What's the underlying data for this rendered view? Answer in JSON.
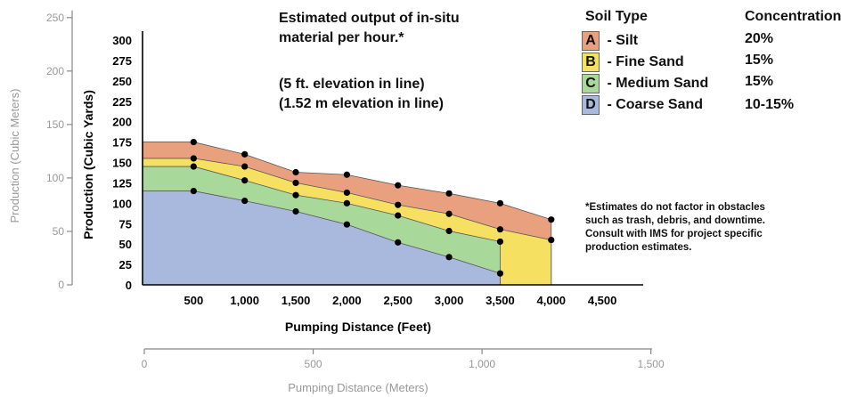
{
  "chart_data": {
    "type": "area",
    "x_ticks": [
      "500",
      "1,000",
      "1,500",
      "2,000",
      "2,500",
      "3,000",
      "3,500",
      "4,000",
      "4,500"
    ],
    "y_ticks": [
      "25",
      "50",
      "75",
      "100",
      "125",
      "150",
      "175",
      "200",
      "225",
      "250",
      "275",
      "300"
    ],
    "y2_ticks": [
      "0",
      "50",
      "100",
      "150",
      "200",
      "250"
    ],
    "x2_ticks": [
      "0",
      "500",
      "1,000",
      "1,500"
    ],
    "xlabel": "Pumping Distance (Feet)",
    "ylabel": "Production (Cubic Yards)",
    "x2label": "Pumping Distance (Meters)",
    "y2label": "Production (Cubic Meters)",
    "xlim": [
      0,
      4900
    ],
    "ylim": [
      0,
      300
    ],
    "x2lim": [
      0,
      1493
    ],
    "y2lim": [
      0,
      229
    ],
    "series": [
      {
        "name": "Silt",
        "letter": "A",
        "concentration": "20%",
        "color": "#e8a07e",
        "x": [
          0,
          500,
          1000,
          1500,
          2000,
          2500,
          3000,
          3500,
          4000
        ],
        "values": [
          175,
          175,
          160,
          138,
          135,
          122,
          112,
          100,
          80
        ]
      },
      {
        "name": "Fine Sand",
        "letter": "B",
        "concentration": "15%",
        "color": "#f6e062",
        "x": [
          0,
          500,
          1000,
          1500,
          2000,
          2500,
          3000,
          3500,
          4000
        ],
        "values": [
          155,
          155,
          145,
          125,
          113,
          98,
          87,
          68,
          55
        ]
      },
      {
        "name": "Medium Sand",
        "letter": "C",
        "concentration": "15%",
        "color": "#a8d99a",
        "x": [
          0,
          500,
          1000,
          1500,
          2000,
          2500,
          3000,
          3500
        ],
        "values": [
          145,
          145,
          128,
          110,
          100,
          85,
          66,
          53
        ]
      },
      {
        "name": "Coarse Sand",
        "letter": "D",
        "concentration": "10-15%",
        "color": "#a9b8dd",
        "x": [
          0,
          500,
          1000,
          1500,
          2000,
          2500,
          3000,
          3500
        ],
        "values": [
          115,
          115,
          103,
          90,
          74,
          52,
          34,
          14
        ]
      }
    ],
    "markers": [
      {
        "x": 500,
        "y": 175
      },
      {
        "x": 500,
        "y": 155
      },
      {
        "x": 500,
        "y": 145
      },
      {
        "x": 500,
        "y": 115
      },
      {
        "x": 1000,
        "y": 160
      },
      {
        "x": 1000,
        "y": 145
      },
      {
        "x": 1000,
        "y": 128
      },
      {
        "x": 1000,
        "y": 103
      },
      {
        "x": 1500,
        "y": 138
      },
      {
        "x": 1500,
        "y": 125
      },
      {
        "x": 1500,
        "y": 110
      },
      {
        "x": 1500,
        "y": 90
      },
      {
        "x": 2000,
        "y": 135
      },
      {
        "x": 2000,
        "y": 113
      },
      {
        "x": 2000,
        "y": 100
      },
      {
        "x": 2000,
        "y": 74
      },
      {
        "x": 2500,
        "y": 122
      },
      {
        "x": 2500,
        "y": 98
      },
      {
        "x": 2500,
        "y": 85
      },
      {
        "x": 2500,
        "y": 52
      },
      {
        "x": 3000,
        "y": 112
      },
      {
        "x": 3000,
        "y": 87
      },
      {
        "x": 3000,
        "y": 66
      },
      {
        "x": 3000,
        "y": 34
      },
      {
        "x": 3500,
        "y": 100
      },
      {
        "x": 3500,
        "y": 68
      },
      {
        "x": 3500,
        "y": 53
      },
      {
        "x": 3500,
        "y": 14
      },
      {
        "x": 4000,
        "y": 80
      },
      {
        "x": 4000,
        "y": 55
      }
    ],
    "title_lines": [
      "Estimated output of in-situ",
      "material per hour.*"
    ],
    "subtitle_lines": [
      "(5 ft. elevation in line)",
      "(1.52 m elevation in line)"
    ],
    "legend_header_soil": "Soil Type",
    "legend_header_conc": "Concentration",
    "legend_sep": " - ",
    "footnote_lines": [
      "*Estimates do not factor in obstacles",
      "such as trash, debris, and downtime.",
      "Consult with IMS for project specific",
      "production estimates."
    ]
  }
}
